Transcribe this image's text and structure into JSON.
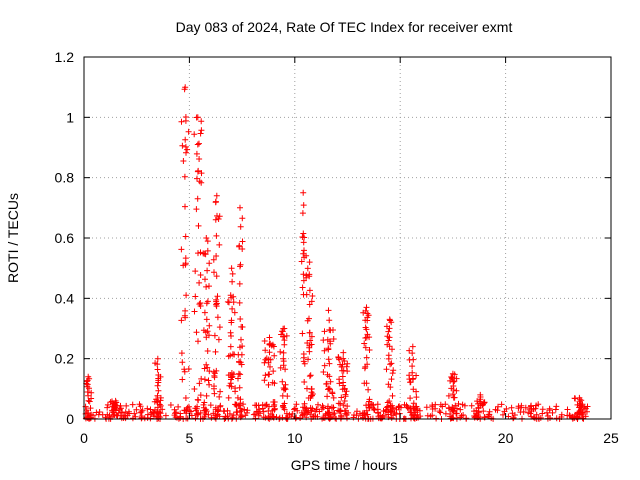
{
  "chart_data": {
    "type": "scatter",
    "title": "Day 083 of 2024, Rate Of TEC Index for receiver exmt",
    "xlabel": "GPS time / hours",
    "ylabel": "ROTI / TECUs",
    "xlim": [
      0,
      25
    ],
    "ylim": [
      0,
      1.2
    ],
    "x_ticks": [
      0,
      5,
      10,
      15,
      20,
      25
    ],
    "x_tick_labels": [
      "0",
      "5",
      "10",
      "15",
      "20",
      "25"
    ],
    "y_ticks": [
      0,
      0.2,
      0.4,
      0.6,
      0.8,
      1.0,
      1.2
    ],
    "y_tick_labels": [
      "0",
      "0.2",
      "0.4",
      "0.6",
      "0.8",
      "1",
      "1.2"
    ],
    "grid": true,
    "marker": "plus",
    "color": "#ff0000",
    "baseline": {
      "x_range": [
        0,
        24
      ],
      "typical_max": 0.05
    },
    "bursts": [
      {
        "x": 0.2,
        "width": 0.3,
        "peak": 0.14,
        "count": 20
      },
      {
        "x": 1.5,
        "width": 0.6,
        "peak": 0.06,
        "count": 14
      },
      {
        "x": 3.5,
        "width": 0.3,
        "peak": 0.2,
        "count": 22
      },
      {
        "x": 4.8,
        "width": 0.4,
        "peak": 1.1,
        "count": 30
      },
      {
        "x": 5.4,
        "width": 0.35,
        "peak": 1.0,
        "count": 34
      },
      {
        "x": 5.8,
        "width": 0.3,
        "peak": 0.6,
        "count": 30
      },
      {
        "x": 6.3,
        "width": 0.35,
        "peak": 0.74,
        "count": 36
      },
      {
        "x": 7.0,
        "width": 0.35,
        "peak": 0.5,
        "count": 30
      },
      {
        "x": 7.4,
        "width": 0.3,
        "peak": 0.7,
        "count": 32
      },
      {
        "x": 8.8,
        "width": 0.5,
        "peak": 0.27,
        "count": 36
      },
      {
        "x": 9.5,
        "width": 0.4,
        "peak": 0.3,
        "count": 28
      },
      {
        "x": 10.4,
        "width": 0.3,
        "peak": 0.75,
        "count": 24
      },
      {
        "x": 10.7,
        "width": 0.35,
        "peak": 0.52,
        "count": 30
      },
      {
        "x": 11.6,
        "width": 0.5,
        "peak": 0.36,
        "count": 36
      },
      {
        "x": 12.3,
        "width": 0.5,
        "peak": 0.22,
        "count": 32
      },
      {
        "x": 13.4,
        "width": 0.35,
        "peak": 0.37,
        "count": 30
      },
      {
        "x": 14.5,
        "width": 0.35,
        "peak": 0.33,
        "count": 28
      },
      {
        "x": 15.6,
        "width": 0.4,
        "peak": 0.24,
        "count": 26
      },
      {
        "x": 17.5,
        "width": 0.4,
        "peak": 0.15,
        "count": 22
      },
      {
        "x": 18.8,
        "width": 0.5,
        "peak": 0.08,
        "count": 16
      },
      {
        "x": 23.5,
        "width": 0.5,
        "peak": 0.07,
        "count": 18
      }
    ]
  }
}
